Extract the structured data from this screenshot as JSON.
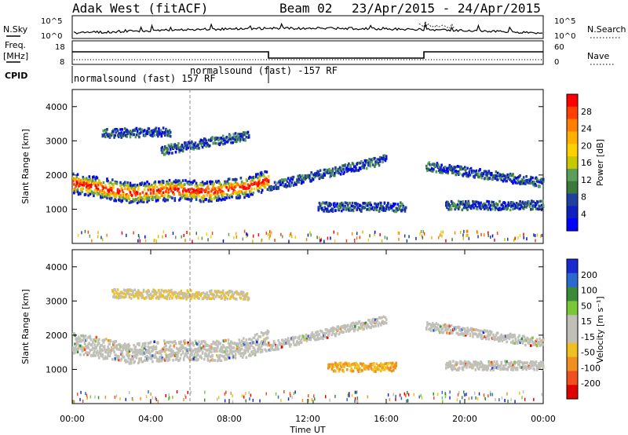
{
  "header": {
    "station": "Adak West (fitACF)",
    "beam": "Beam 02",
    "date_range": "23/Apr/2015 - 24/Apr/2015"
  },
  "top_panels": {
    "nsky_label": "N.Sky",
    "nsearch_label": "N.Search",
    "freq_label_line1": "Freq.",
    "freq_label_line2": "[MHz]",
    "nave_label": "Nave",
    "cpid_label": "CPID",
    "nsky_ticks": [
      "10^5",
      "10^0"
    ],
    "nsearch_ticks": [
      "10^5",
      "10^0"
    ],
    "freq_ticks": [
      "18",
      "8"
    ],
    "nave_ticks": [
      "60",
      "0"
    ],
    "cpid_segments": [
      {
        "text": "normalsound (fast) 157 RF"
      },
      {
        "text": "normalsound (fast) -157 RF"
      }
    ]
  },
  "colorbars": {
    "power": {
      "title": "Power [dB]",
      "ticks": [
        "28",
        "24",
        "20",
        "16",
        "12",
        "8",
        "4"
      ],
      "colors": [
        "#ff0000",
        "#ff4000",
        "#ff8000",
        "#ffb000",
        "#ffd000",
        "#c8c800",
        "#5aa05a",
        "#3c7a3c",
        "#2040a0",
        "#1020c0",
        "#0000ff"
      ]
    },
    "velocity": {
      "title": "Velocity [m s⁻¹]",
      "ticks": [
        "200",
        "100",
        "50",
        "15",
        "-15",
        "-50",
        "-100",
        "-200"
      ],
      "colors": [
        "#1a2ad0",
        "#2a6ad0",
        "#3a8a3a",
        "#7ac83a",
        "#c0c0b8",
        "#c0c0b8",
        "#f0c020",
        "#f09020",
        "#f05020",
        "#e00000"
      ]
    }
  },
  "chart_data": [
    {
      "type": "heatmap",
      "title": "",
      "ylabel": "Slant Range [km]",
      "colorbar_label": "Power [dB]",
      "y_ticks": [
        "1000",
        "2000",
        "3000",
        "4000"
      ],
      "ylim": [
        0,
        4500
      ],
      "xlim": [
        0,
        24
      ],
      "features": [
        {
          "x": [
            0.0,
            3.0,
            5.0,
            7.0,
            9.0,
            10.0
          ],
          "y": [
            1800,
            1500,
            1600,
            1550,
            1700,
            1900
          ]
        },
        {
          "x": [
            1.5,
            5.0
          ],
          "y": [
            3250,
            3300
          ]
        },
        {
          "x": [
            4.5,
            9.0
          ],
          "y": [
            2750,
            3200
          ]
        },
        {
          "x": [
            10.0,
            16.0
          ],
          "y": [
            1700,
            2500
          ]
        },
        {
          "x": [
            12.5,
            17.0
          ],
          "y": [
            1100,
            1100
          ]
        },
        {
          "x": [
            18.0,
            24.0
          ],
          "y": [
            2300,
            1800
          ]
        },
        {
          "x": [
            19.0,
            24.0
          ],
          "y": [
            1150,
            1150
          ]
        }
      ]
    },
    {
      "type": "heatmap",
      "title": "",
      "xlabel": "Time UT",
      "ylabel": "Slant Range [km]",
      "colorbar_label": "Velocity [m s⁻¹]",
      "x_ticks": [
        "00:00",
        "04:00",
        "08:00",
        "12:00",
        "16:00",
        "20:00",
        "00:00"
      ],
      "y_ticks": [
        "1000",
        "2000",
        "3000",
        "4000"
      ],
      "ylim": [
        0,
        4500
      ],
      "xlim": [
        0,
        24
      ],
      "features": [
        {
          "x": [
            0.0,
            3.0,
            5.0,
            7.0,
            9.0,
            10.0
          ],
          "y": [
            1800,
            1500,
            1600,
            1550,
            1700,
            1900
          ]
        },
        {
          "x": [
            2.0,
            9.0
          ],
          "y": [
            3250,
            3200
          ]
        },
        {
          "x": [
            10.0,
            16.0
          ],
          "y": [
            1700,
            2500
          ]
        },
        {
          "x": [
            13.0,
            16.5
          ],
          "y": [
            1100,
            1100
          ]
        },
        {
          "x": [
            18.0,
            24.0
          ],
          "y": [
            2300,
            1800
          ]
        },
        {
          "x": [
            19.0,
            24.0
          ],
          "y": [
            1150,
            1150
          ]
        }
      ]
    }
  ]
}
